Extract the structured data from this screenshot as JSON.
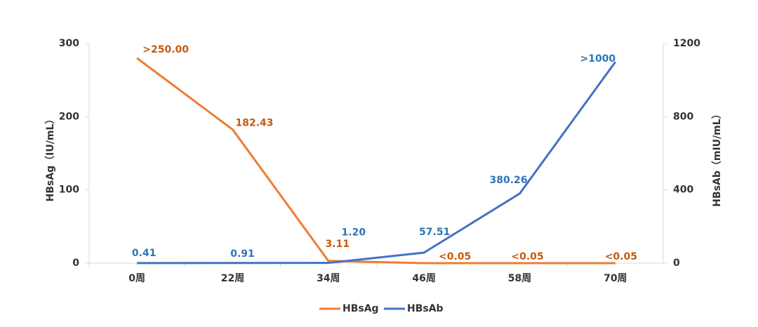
{
  "chart_data": {
    "type": "line",
    "categories": [
      "0周",
      "22周",
      "34周",
      "46周",
      "58周",
      "70周"
    ],
    "series": [
      {
        "name": "HBsAg",
        "color": "#ed7d31",
        "label_color": "#c55a11",
        "values": [
          280,
          182.43,
          3.11,
          0,
          0,
          0
        ],
        "value_labels": [
          ">250.00",
          "182.43",
          "3.11",
          "<0.05",
          "<0.05",
          "<0.05"
        ]
      },
      {
        "name": "HBsAb",
        "color": "#4472c4",
        "label_color": "#2e75b6",
        "axis": "y2",
        "values": [
          0.41,
          0.91,
          1.2,
          57.51,
          380.26,
          1100
        ],
        "value_labels": [
          "0.41",
          "0.91",
          "1.20",
          "57.51",
          "380.26",
          ">1000"
        ]
      }
    ],
    "ylabel": "HBsAg（IU/mL）",
    "y2label": "HBsAb（mIU/mL）",
    "ylim": [
      0,
      300
    ],
    "yticks": [
      0,
      100,
      200,
      300
    ],
    "y2lim": [
      0,
      1200
    ],
    "y2ticks": [
      0,
      400,
      800,
      1200
    ],
    "grid": false,
    "legend": "bottom"
  }
}
